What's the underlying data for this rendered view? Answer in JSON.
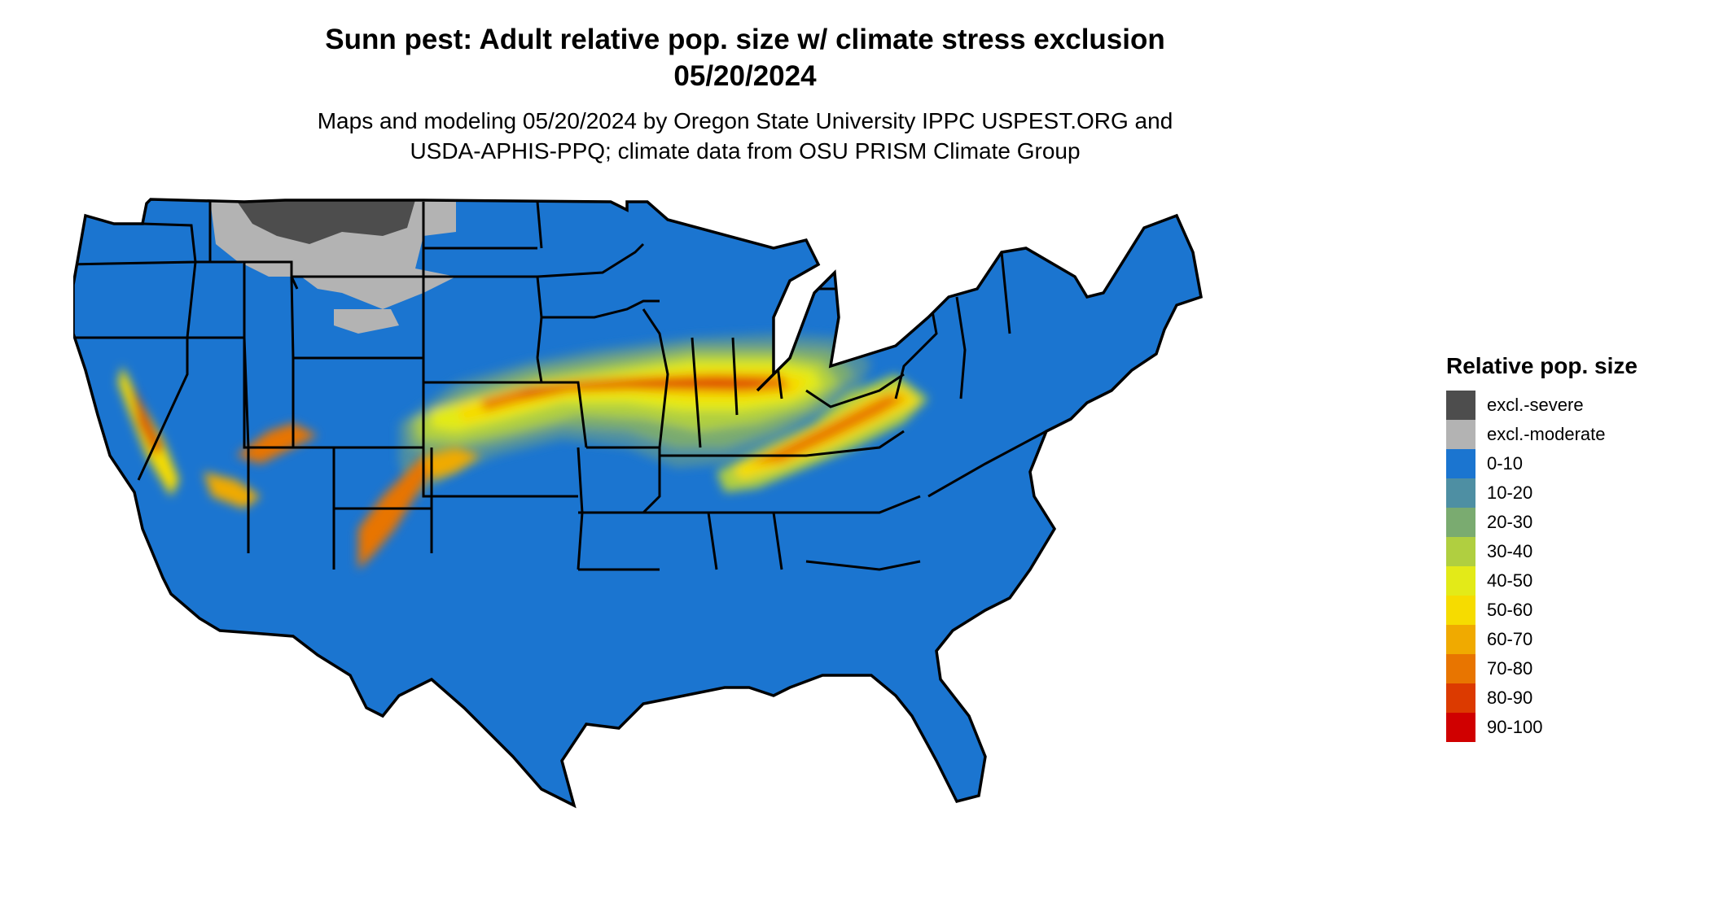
{
  "header": {
    "title_line1": "Sunn pest: Adult relative pop. size w/ climate stress exclusion",
    "title_line2": "05/20/2024",
    "subtitle_line1": "Maps and modeling 05/20/2024 by Oregon State University IPPC USPEST.ORG and",
    "subtitle_line2": "USDA-APHIS-PPQ; climate data from OSU PRISM Climate Group"
  },
  "legend": {
    "title": "Relative pop. size",
    "items": [
      {
        "label": "excl.-severe",
        "color": "#4d4d4d"
      },
      {
        "label": "excl.-moderate",
        "color": "#b3b3b3"
      },
      {
        "label": "0-10",
        "color": "#1b75d0"
      },
      {
        "label": "10-20",
        "color": "#4e8fa3"
      },
      {
        "label": "20-30",
        "color": "#7aab70"
      },
      {
        "label": "30-40",
        "color": "#b0cf40"
      },
      {
        "label": "40-50",
        "color": "#e3ea18"
      },
      {
        "label": "50-60",
        "color": "#f6dc00"
      },
      {
        "label": "60-70",
        "color": "#f0aa00"
      },
      {
        "label": "70-80",
        "color": "#e87500"
      },
      {
        "label": "80-90",
        "color": "#dc3a00"
      },
      {
        "label": "90-100",
        "color": "#d00000"
      }
    ]
  }
}
